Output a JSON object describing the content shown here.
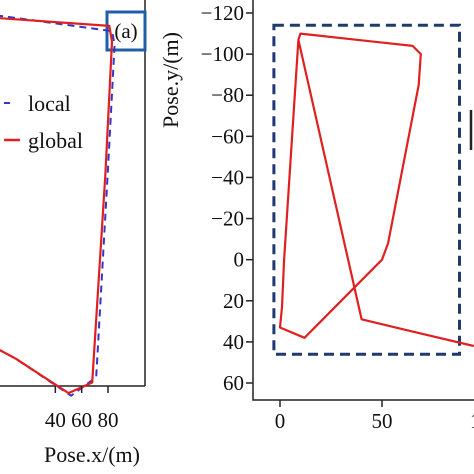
{
  "colors": {
    "local": "#3535c8",
    "global": "#e02020",
    "frame": "#1f5fa8",
    "roi": "#1e3a6e",
    "axis": "#222222"
  },
  "chart_data": [
    {
      "type": "line",
      "panel_label": "(a)",
      "xlabel": "Pose.x/(m)",
      "ylabel": "",
      "x_tick_labels": [
        "40",
        "60",
        "80"
      ],
      "legend": {
        "placement": "top-left",
        "entries": [
          "local",
          "global"
        ]
      },
      "series": [
        {
          "name": "local",
          "style": "dashed",
          "x": [
            -5,
            83,
            85,
            80,
            71,
            52,
            10,
            -5
          ],
          "y": [
            112,
            106,
            101,
            54,
            -25,
            -32,
            -18,
            -14
          ]
        },
        {
          "name": "global",
          "style": "solid",
          "x": [
            -5,
            81,
            83,
            78,
            68,
            50,
            10,
            -5
          ],
          "y": [
            111,
            108,
            102,
            52,
            -27,
            -31,
            -18,
            -14
          ]
        }
      ]
    },
    {
      "type": "line",
      "xlabel": "",
      "ylabel": "Pose.y/(m)",
      "y_tick_labels": [
        "−120",
        "−100",
        "−80",
        "−60",
        "−40",
        "−20",
        "0",
        "20",
        "40",
        "60"
      ],
      "x_tick_labels": [
        "0",
        "50",
        "1"
      ],
      "xlim": [
        -8,
        97
      ],
      "ylim": [
        60,
        -120
      ],
      "series": [
        {
          "name": "",
          "style": "solid",
          "x": [
            9,
            10,
            65,
            69,
            68,
            53,
            50,
            12,
            0,
            1,
            2,
            9,
            40,
            65,
            95
          ],
          "y": [
            -107,
            -110,
            -104,
            -100,
            -85,
            -8,
            0,
            38,
            33,
            23,
            0,
            -107,
            29,
            35,
            42
          ]
        }
      ],
      "roi_box": {
        "x": [
          -3,
          88
        ],
        "y": [
          -114,
          46
        ]
      }
    }
  ]
}
